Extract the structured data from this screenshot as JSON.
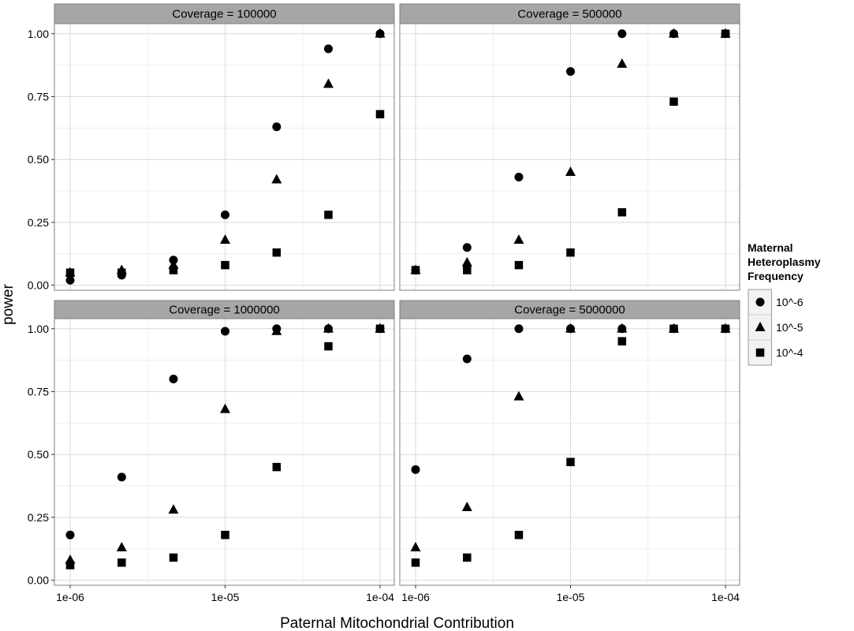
{
  "chart_data": {
    "type": "scatter",
    "facet_strip_prefix": "Coverage = ",
    "xlabel": "Paternal Mitochondrial Contribution",
    "ylabel": "power",
    "x_scale": "log10",
    "x_ticks": [
      1e-06,
      1e-05,
      0.0001
    ],
    "x_tick_labels": [
      "1e-06",
      "1e-05",
      "1e-04"
    ],
    "y_ticks": [
      0,
      0.25,
      0.5,
      0.75,
      1
    ],
    "y_tick_labels": [
      "0.00",
      "0.25",
      "0.50",
      "0.75",
      "1.00"
    ],
    "ylim": [
      -0.02,
      1.04
    ],
    "grid": true,
    "x": [
      1e-06,
      2.15e-06,
      4.64e-06,
      1e-05,
      2.15e-05,
      4.64e-05,
      0.0001
    ],
    "legend": {
      "title_lines": [
        "Maternal",
        "Heteroplasmy",
        "Frequency"
      ],
      "position": "right",
      "entries": [
        {
          "label": "10^-6",
          "shape": "circle"
        },
        {
          "label": "10^-5",
          "shape": "triangle"
        },
        {
          "label": "10^-4",
          "shape": "square"
        }
      ]
    },
    "panels": [
      {
        "coverage": "100000",
        "series": [
          {
            "shape": "circle",
            "values": [
              0.02,
              0.04,
              0.1,
              0.28,
              0.63,
              0.94,
              1.0
            ]
          },
          {
            "shape": "triangle",
            "values": [
              0.05,
              0.06,
              0.08,
              0.18,
              0.42,
              0.8,
              1.0
            ]
          },
          {
            "shape": "square",
            "values": [
              0.05,
              0.05,
              0.06,
              0.08,
              0.13,
              0.28,
              0.68
            ]
          }
        ]
      },
      {
        "coverage": "500000",
        "series": [
          {
            "shape": "circle",
            "values": [
              0.06,
              0.15,
              0.43,
              0.85,
              1.0,
              1.0,
              1.0
            ]
          },
          {
            "shape": "triangle",
            "values": [
              0.06,
              0.09,
              0.18,
              0.45,
              0.88,
              1.0,
              1.0
            ]
          },
          {
            "shape": "square",
            "values": [
              0.06,
              0.06,
              0.08,
              0.13,
              0.29,
              0.73,
              1.0
            ]
          }
        ]
      },
      {
        "coverage": "1000000",
        "series": [
          {
            "shape": "circle",
            "values": [
              0.18,
              0.41,
              0.8,
              0.99,
              1.0,
              1.0,
              1.0
            ]
          },
          {
            "shape": "triangle",
            "values": [
              0.08,
              0.13,
              0.28,
              0.68,
              0.99,
              1.0,
              1.0
            ]
          },
          {
            "shape": "square",
            "values": [
              0.06,
              0.07,
              0.09,
              0.18,
              0.45,
              0.93,
              1.0
            ]
          }
        ]
      },
      {
        "coverage": "5000000",
        "series": [
          {
            "shape": "circle",
            "values": [
              0.44,
              0.88,
              1.0,
              1.0,
              1.0,
              1.0,
              1.0
            ]
          },
          {
            "shape": "triangle",
            "values": [
              0.13,
              0.29,
              0.73,
              1.0,
              1.0,
              1.0,
              1.0
            ]
          },
          {
            "shape": "square",
            "values": [
              0.07,
              0.09,
              0.18,
              0.47,
              0.95,
              1.0,
              1.0
            ]
          }
        ]
      }
    ]
  }
}
